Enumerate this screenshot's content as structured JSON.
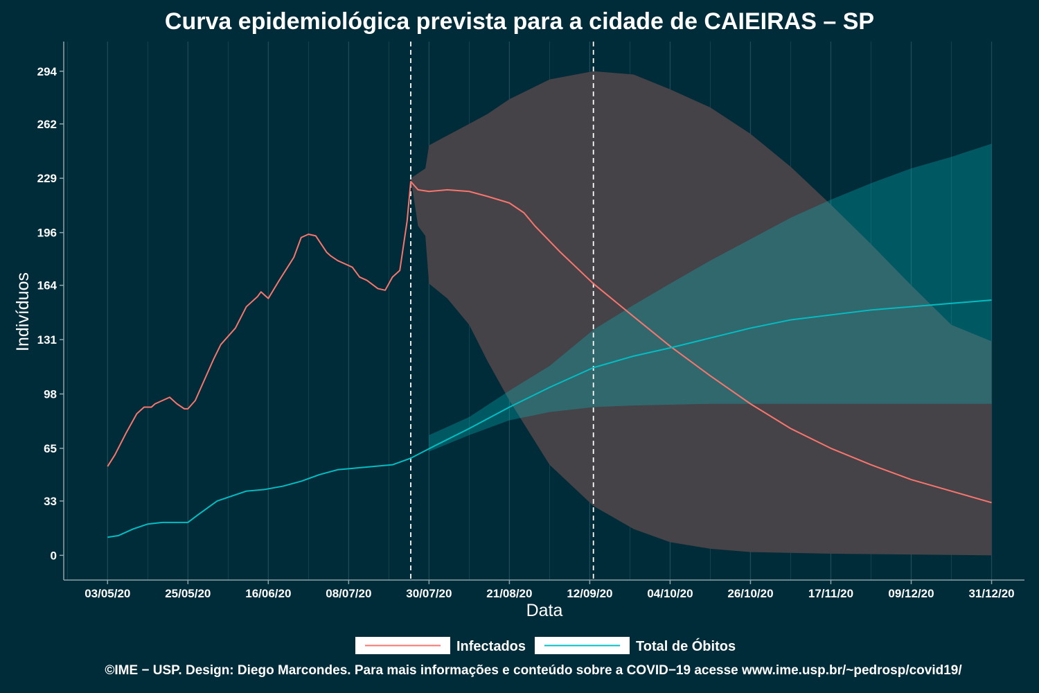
{
  "title": "Curva epidemiológica prevista para a cidade de CAIEIRAS – SP",
  "footer": "©IME − USP. Design: Diego Marcondes. Para mais informações e conteúdo sobre a COVID−19 acesse www.ime.usp.br/~pedrosp/covid19/",
  "colors": {
    "background": "#002b38",
    "infectados": "#f8766d",
    "obitos": "#00bfc4",
    "band_infectados": "#454248",
    "band_obitos": "#00bfc4",
    "grid": "#1f4a57",
    "axis": "#8fa5ab"
  },
  "chart_data": {
    "type": "line",
    "xlabel": "Data",
    "ylabel": "Indivíduos",
    "x_ticks": [
      "03/05/20",
      "25/05/20",
      "16/06/20",
      "08/07/20",
      "30/07/20",
      "21/08/20",
      "12/09/20",
      "04/10/20",
      "26/10/20",
      "17/11/20",
      "09/12/20",
      "31/12/20"
    ],
    "y_ticks": [
      0,
      33,
      65,
      98,
      131,
      164,
      196,
      229,
      262,
      294
    ],
    "xlim": [
      "2020-04-21",
      "2021-01-09"
    ],
    "ylim": [
      -15,
      312
    ],
    "vlines": [
      "2020-07-25",
      "2020-09-13"
    ],
    "legend_position": "bottom",
    "series": [
      {
        "name": "Infectados",
        "color": "#f8766d",
        "points": [
          [
            "2020-05-03",
            54
          ],
          [
            "2020-05-05",
            61
          ],
          [
            "2020-05-08",
            74
          ],
          [
            "2020-05-11",
            86
          ],
          [
            "2020-05-13",
            90
          ],
          [
            "2020-05-15",
            90
          ],
          [
            "2020-05-16",
            92
          ],
          [
            "2020-05-20",
            96
          ],
          [
            "2020-05-22",
            92
          ],
          [
            "2020-05-24",
            89
          ],
          [
            "2020-05-25",
            89
          ],
          [
            "2020-05-27",
            94
          ],
          [
            "2020-06-01",
            119
          ],
          [
            "2020-06-03",
            128
          ],
          [
            "2020-06-07",
            138
          ],
          [
            "2020-06-10",
            151
          ],
          [
            "2020-06-13",
            157
          ],
          [
            "2020-06-14",
            160
          ],
          [
            "2020-06-16",
            156
          ],
          [
            "2020-06-19",
            167
          ],
          [
            "2020-06-23",
            181
          ],
          [
            "2020-06-25",
            193
          ],
          [
            "2020-06-27",
            195
          ],
          [
            "2020-06-29",
            194
          ],
          [
            "2020-07-02",
            184
          ],
          [
            "2020-07-03",
            182
          ],
          [
            "2020-07-05",
            179
          ],
          [
            "2020-07-09",
            175
          ],
          [
            "2020-07-11",
            169
          ],
          [
            "2020-07-13",
            167
          ],
          [
            "2020-07-16",
            162
          ],
          [
            "2020-07-18",
            161
          ],
          [
            "2020-07-20",
            169
          ],
          [
            "2020-07-22",
            173
          ],
          [
            "2020-07-24",
            203
          ],
          [
            "2020-07-25",
            227
          ],
          [
            "2020-07-27",
            222
          ],
          [
            "2020-07-30",
            221
          ],
          [
            "2020-08-04",
            222
          ],
          [
            "2020-08-10",
            221
          ],
          [
            "2020-08-15",
            218
          ],
          [
            "2020-08-21",
            214
          ],
          [
            "2020-08-25",
            208
          ],
          [
            "2020-08-28",
            200
          ],
          [
            "2020-09-04",
            184
          ],
          [
            "2020-09-13",
            165
          ],
          [
            "2020-09-24",
            145
          ],
          [
            "2020-10-04",
            127
          ],
          [
            "2020-10-15",
            109
          ],
          [
            "2020-10-26",
            92
          ],
          [
            "2020-11-06",
            77
          ],
          [
            "2020-11-17",
            65
          ],
          [
            "2020-11-28",
            55
          ],
          [
            "2020-12-09",
            46
          ],
          [
            "2020-12-20",
            39
          ],
          [
            "2020-12-31",
            32
          ]
        ]
      },
      {
        "name": "Total de Óbitos",
        "color": "#00bfc4",
        "points": [
          [
            "2020-05-03",
            11
          ],
          [
            "2020-05-06",
            12
          ],
          [
            "2020-05-10",
            16
          ],
          [
            "2020-05-14",
            19
          ],
          [
            "2020-05-18",
            20
          ],
          [
            "2020-05-22",
            20
          ],
          [
            "2020-05-25",
            20
          ],
          [
            "2020-05-28",
            25
          ],
          [
            "2020-06-02",
            33
          ],
          [
            "2020-06-06",
            36
          ],
          [
            "2020-06-10",
            39
          ],
          [
            "2020-06-15",
            40
          ],
          [
            "2020-06-20",
            42
          ],
          [
            "2020-06-25",
            45
          ],
          [
            "2020-06-30",
            49
          ],
          [
            "2020-07-05",
            52
          ],
          [
            "2020-07-10",
            53
          ],
          [
            "2020-07-15",
            54
          ],
          [
            "2020-07-20",
            55
          ],
          [
            "2020-07-25",
            59
          ],
          [
            "2020-08-01",
            67
          ],
          [
            "2020-08-10",
            77
          ],
          [
            "2020-08-21",
            90
          ],
          [
            "2020-09-01",
            102
          ],
          [
            "2020-09-13",
            114
          ],
          [
            "2020-09-24",
            121
          ],
          [
            "2020-10-04",
            126
          ],
          [
            "2020-10-15",
            132
          ],
          [
            "2020-10-26",
            138
          ],
          [
            "2020-11-06",
            143
          ],
          [
            "2020-11-17",
            146
          ],
          [
            "2020-11-28",
            149
          ],
          [
            "2020-12-09",
            151
          ],
          [
            "2020-12-20",
            153
          ],
          [
            "2020-12-31",
            155
          ]
        ]
      }
    ],
    "bands": [
      {
        "series": "Infectados",
        "upper": [
          [
            "2020-07-25",
            229
          ],
          [
            "2020-07-29",
            235
          ],
          [
            "2020-07-30",
            249
          ],
          [
            "2020-08-04",
            255
          ],
          [
            "2020-08-10",
            262
          ],
          [
            "2020-08-15",
            268
          ],
          [
            "2020-08-21",
            277
          ],
          [
            "2020-09-01",
            289
          ],
          [
            "2020-09-13",
            294
          ],
          [
            "2020-09-24",
            292
          ],
          [
            "2020-10-04",
            283
          ],
          [
            "2020-10-15",
            272
          ],
          [
            "2020-10-26",
            256
          ],
          [
            "2020-11-06",
            236
          ],
          [
            "2020-11-17",
            213
          ],
          [
            "2020-11-28",
            189
          ],
          [
            "2020-12-09",
            164
          ],
          [
            "2020-12-20",
            140
          ],
          [
            "2020-12-31",
            130
          ]
        ],
        "lower": [
          [
            "2020-07-25",
            229
          ],
          [
            "2020-07-27",
            200
          ],
          [
            "2020-07-29",
            194
          ],
          [
            "2020-07-30",
            165
          ],
          [
            "2020-08-04",
            156
          ],
          [
            "2020-08-10",
            140
          ],
          [
            "2020-08-15",
            118
          ],
          [
            "2020-08-21",
            94
          ],
          [
            "2020-09-01",
            55
          ],
          [
            "2020-09-13",
            30
          ],
          [
            "2020-09-24",
            16
          ],
          [
            "2020-10-04",
            8
          ],
          [
            "2020-10-15",
            4
          ],
          [
            "2020-10-26",
            2
          ],
          [
            "2020-11-17",
            1
          ],
          [
            "2020-12-31",
            0
          ]
        ]
      },
      {
        "series": "Total de Óbitos",
        "upper": [
          [
            "2020-07-30",
            73
          ],
          [
            "2020-08-10",
            84
          ],
          [
            "2020-08-21",
            100
          ],
          [
            "2020-09-01",
            115
          ],
          [
            "2020-09-13",
            137
          ],
          [
            "2020-09-24",
            152
          ],
          [
            "2020-10-04",
            165
          ],
          [
            "2020-10-15",
            179
          ],
          [
            "2020-10-26",
            192
          ],
          [
            "2020-11-06",
            205
          ],
          [
            "2020-11-17",
            216
          ],
          [
            "2020-11-28",
            226
          ],
          [
            "2020-12-09",
            235
          ],
          [
            "2020-12-20",
            242
          ],
          [
            "2020-12-31",
            250
          ]
        ],
        "lower": [
          [
            "2020-07-30",
            63
          ],
          [
            "2020-08-10",
            73
          ],
          [
            "2020-08-21",
            82
          ],
          [
            "2020-09-01",
            87
          ],
          [
            "2020-09-13",
            90
          ],
          [
            "2020-09-24",
            91
          ],
          [
            "2020-10-15",
            92
          ],
          [
            "2020-12-31",
            92
          ]
        ]
      }
    ]
  }
}
